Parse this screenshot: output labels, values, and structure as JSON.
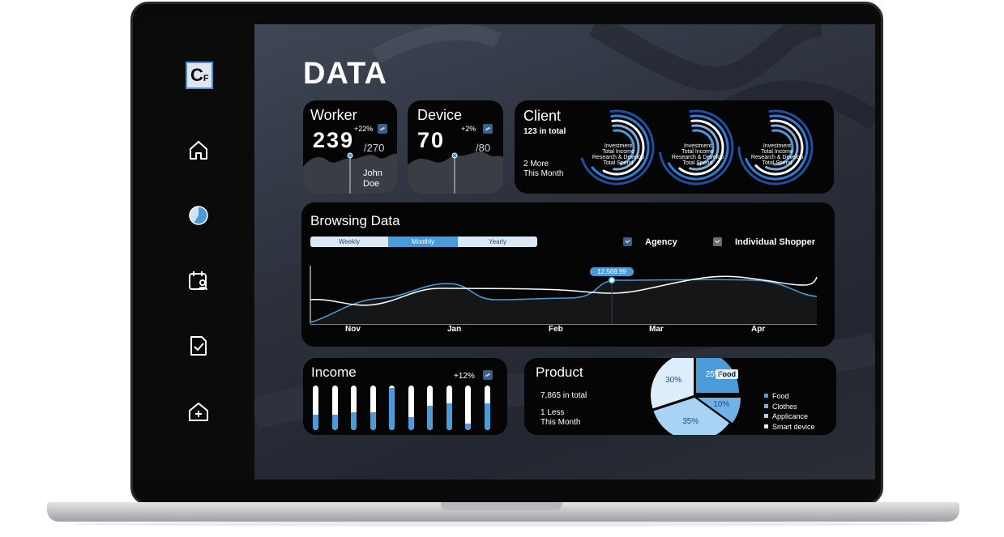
{
  "page": {
    "title": "DATA"
  },
  "logo": {
    "main": "C",
    "sub": "F"
  },
  "nav": [
    {
      "icon": "home-icon"
    },
    {
      "icon": "pie-chart-icon"
    },
    {
      "icon": "calendar-user-icon"
    },
    {
      "icon": "document-check-icon"
    },
    {
      "icon": "add-home-icon"
    }
  ],
  "worker": {
    "title": "Worker",
    "value": "239",
    "total": "/270",
    "change": "+22%",
    "person": [
      "John",
      "Doe"
    ]
  },
  "device": {
    "title": "Device",
    "value": "70",
    "total": "/80",
    "change": "+2%"
  },
  "client": {
    "title": "Client",
    "total": "123 in total",
    "more": [
      "2 More",
      "This Month"
    ],
    "ring_labels": [
      "Investment",
      "Total Income",
      "Research & Develop",
      "Total Spend"
    ]
  },
  "browsing": {
    "title": "Browsing Data",
    "tabs": [
      "Weekly",
      "Monthly",
      "Yearly"
    ],
    "active_tab": 1,
    "legend": [
      "Agency",
      "Individual Shopper"
    ],
    "tooltip": "12,569.99",
    "months": [
      "Nov",
      "Jan",
      "Feb",
      "Mar",
      "Apr"
    ]
  },
  "income": {
    "title": "Income",
    "change": "+12%",
    "bars": [
      0.35,
      0.35,
      0.4,
      0.4,
      0.95,
      0.3,
      0.55,
      0.6,
      0.15,
      0.6
    ]
  },
  "product": {
    "title": "Product",
    "total": "7,865 in total",
    "less": [
      "1 Less",
      "This Month"
    ],
    "callout": "Food",
    "chart_data": {
      "type": "pie",
      "slices": [
        {
          "label": "Food",
          "value": 25,
          "color": "#4a9bd8"
        },
        {
          "label": "Clothes",
          "value": 10,
          "color": "#6fb3e8"
        },
        {
          "label": "Applicance",
          "value": 35,
          "color": "#a8d3f5"
        },
        {
          "label": "Smart device",
          "value": 30,
          "color": "#dcedfb"
        }
      ],
      "slice_labels": [
        "25%",
        "10%",
        "35%",
        "30%"
      ]
    }
  },
  "colors": {
    "accent": "#4a9bd8",
    "card": "#050506",
    "sidebar": "#0b0b0c"
  }
}
